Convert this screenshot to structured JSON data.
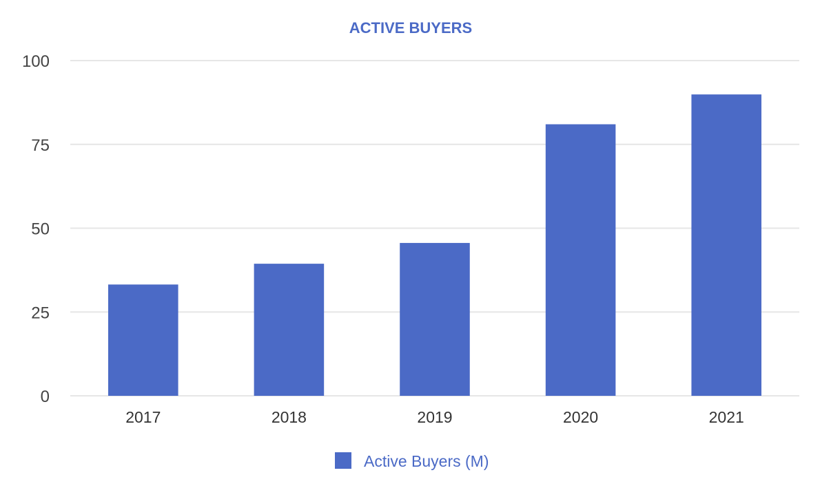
{
  "chart_data": {
    "type": "bar",
    "title": "ACTIVE BUYERS",
    "categories": [
      "2017",
      "2018",
      "2019",
      "2020",
      "2021"
    ],
    "series": [
      {
        "name": "Active Buyers (M)",
        "values": [
          33.2,
          39.4,
          45.6,
          81,
          89.9
        ],
        "color": "#4b6ac6"
      }
    ],
    "xlabel": "",
    "ylabel": "",
    "ylim": [
      0,
      100
    ],
    "yticks": [
      0,
      25,
      50,
      75,
      100
    ],
    "grid": true,
    "legend_position": "bottom-center",
    "title_color": "#4b6ac6",
    "legend_text_color": "#4b6ac6"
  }
}
